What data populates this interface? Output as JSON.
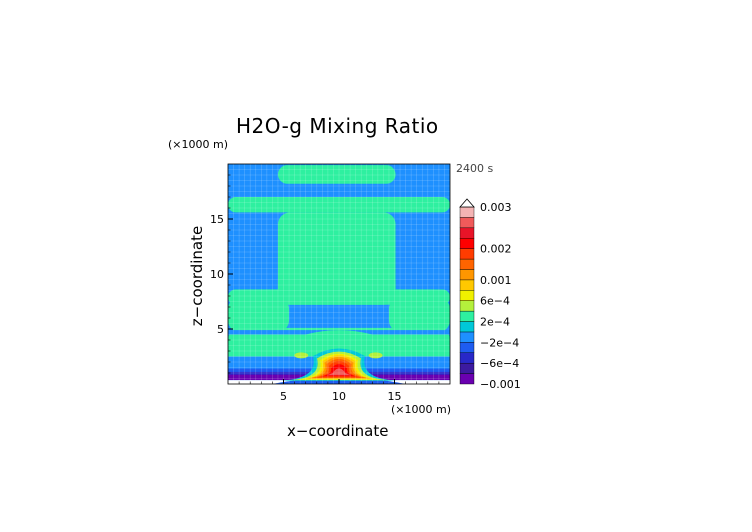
{
  "chart_data": {
    "type": "heatmap",
    "title": "H2O-g Mixing Ratio",
    "xlabel": "x−coordinate",
    "ylabel": "z−coordinate",
    "x_unit": "(×1000 m)",
    "y_unit": "(×1000 m)",
    "time_label": "2400 s",
    "xlim": [
      0,
      20
    ],
    "ylim": [
      0,
      20
    ],
    "x_ticks": [
      5,
      10,
      15
    ],
    "y_ticks": [
      5,
      10,
      15
    ],
    "x_tick_labels": [
      "5",
      "10",
      "15"
    ],
    "y_tick_labels": [
      "5",
      "10",
      "15"
    ],
    "background_level_color": "#1e90ff",
    "regions": [
      {
        "kind": "band",
        "y": [
          18.2,
          19.9
        ],
        "x_outer": [
          4.5,
          15.1
        ],
        "color": "#2ef0a0"
      },
      {
        "kind": "column",
        "y": [
          7.2,
          15.6
        ],
        "x_outer": [
          4.5,
          15.1
        ],
        "x_neck": [
          4.5,
          15.1
        ],
        "color": "#2ef0a0"
      },
      {
        "kind": "band",
        "y": [
          15.6,
          17.0
        ],
        "x_outer": [
          0,
          20
        ],
        "color": "#2ef0a0"
      },
      {
        "kind": "band",
        "y": [
          7.2,
          8.6
        ],
        "x_outer": [
          0,
          20
        ],
        "color": "#2ef0a0"
      },
      {
        "kind": "band",
        "y": [
          4.7,
          7.9
        ],
        "x_outer": [
          0,
          5.5
        ],
        "color": "#2ef0a0"
      },
      {
        "kind": "band",
        "y": [
          4.7,
          7.9
        ],
        "x_outer": [
          14.5,
          20
        ],
        "color": "#2ef0a0"
      },
      {
        "kind": "band",
        "y": [
          2.5,
          5.1
        ],
        "x_outer": [
          0,
          20
        ],
        "color": "#2ef0a0"
      }
    ],
    "colorbar": {
      "levels": [
        {
          "color": "#6a00b0",
          "label": "−0.001"
        },
        {
          "color": "#3c1aa0",
          "label": ""
        },
        {
          "color": "#2828c8",
          "label": "−6e−4"
        },
        {
          "color": "#1e5cf0",
          "label": ""
        },
        {
          "color": "#1e90ff",
          "label": "−2e−4"
        },
        {
          "color": "#00c8d8",
          "label": ""
        },
        {
          "color": "#2ef0a0",
          "label": "2e−4"
        },
        {
          "color": "#b4f03c",
          "label": ""
        },
        {
          "color": "#f0f000",
          "label": "6e−4"
        },
        {
          "color": "#ffc800",
          "label": ""
        },
        {
          "color": "#ff9600",
          "label": "0.001"
        },
        {
          "color": "#ff6400",
          "label": ""
        },
        {
          "color": "#ff3c00",
          "label": ""
        },
        {
          "color": "#ff0000",
          "label": "0.002"
        },
        {
          "color": "#e81428",
          "label": ""
        },
        {
          "color": "#f05a5a",
          "label": ""
        },
        {
          "color": "#f4b4b4",
          "label": "0.003"
        }
      ]
    }
  }
}
